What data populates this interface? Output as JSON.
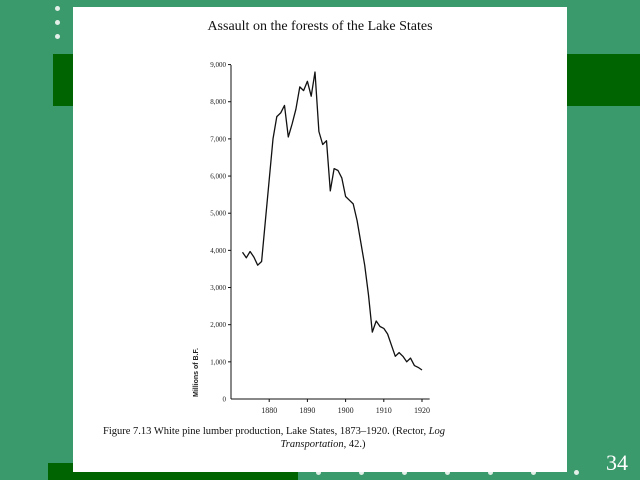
{
  "slide": {
    "number": "34"
  },
  "chart_data": {
    "type": "line",
    "title": "Assault on the forests of the Lake States",
    "ylabel": "Millions of B.F.",
    "xlabel": "",
    "xlim": [
      1870,
      1922
    ],
    "ylim": [
      0,
      9300
    ],
    "xticks": [
      1880,
      1890,
      1900,
      1910,
      1920
    ],
    "xtick_labels": [
      "1880",
      "1890",
      "1900",
      "1910",
      "1920"
    ],
    "yticks": [
      1000,
      2000,
      3000,
      4000,
      5000,
      6000,
      7000,
      8000,
      9000
    ],
    "ytick_labels": [
      "1,000",
      "2,000",
      "3,000",
      "4,000",
      "5,000",
      "6,000",
      "7,000",
      "8,000",
      "9,000"
    ],
    "grid": false,
    "series": [
      {
        "x": [
          1873,
          1874,
          1875,
          1876,
          1877,
          1878,
          1879,
          1880,
          1881,
          1882,
          1883,
          1884,
          1885,
          1886,
          1887,
          1888,
          1889,
          1890,
          1891,
          1892,
          1893,
          1894,
          1895,
          1896,
          1897,
          1898,
          1899,
          1900,
          1901,
          1902,
          1903,
          1904,
          1905,
          1906,
          1907,
          1908,
          1909,
          1910,
          1911,
          1912,
          1913,
          1914,
          1915,
          1916,
          1917,
          1918,
          1919,
          1920
        ],
        "y": [
          3950,
          3800,
          3970,
          3820,
          3600,
          3700,
          4800,
          5900,
          7000,
          7600,
          7700,
          7900,
          7050,
          7400,
          7800,
          8400,
          8300,
          8550,
          8150,
          8800,
          7200,
          6850,
          6950,
          5600,
          6200,
          6150,
          5950,
          5450,
          5350,
          5250,
          4800,
          4200,
          3600,
          2800,
          1800,
          2100,
          1950,
          1900,
          1750,
          1450,
          1150,
          1250,
          1150,
          1000,
          1100,
          900,
          850,
          780
        ]
      }
    ]
  },
  "caption": {
    "prefix": "Figure 7.13   White pine lumber production, Lake States, 1873–1920. (Rector, ",
    "ref_italic_1": "Log",
    "ref_italic_2": "Transportation",
    "suffix": ", 42.)"
  }
}
